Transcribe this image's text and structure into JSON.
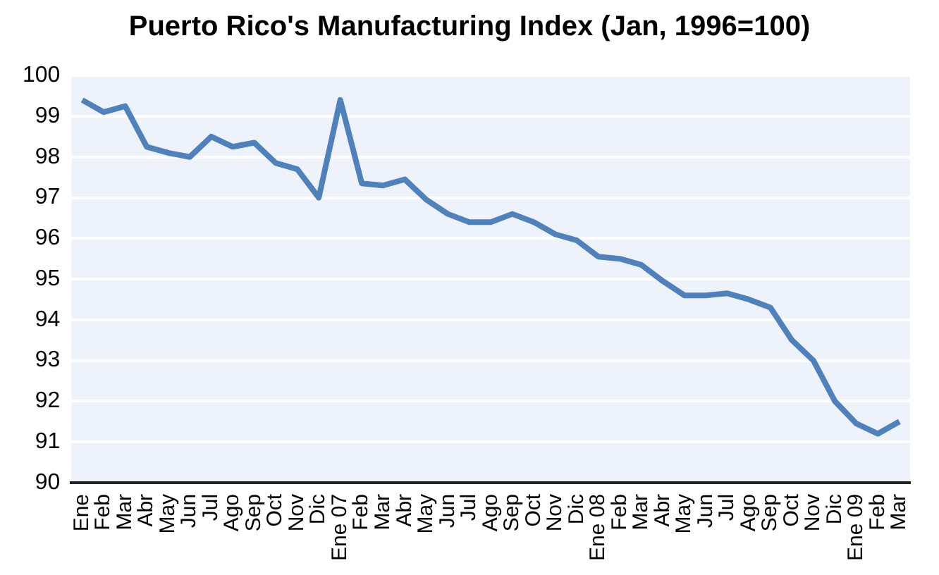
{
  "chart_data": {
    "type": "line",
    "title": "Puerto Rico's Manufacturing Index (Jan, 1996=100)",
    "categories": [
      "Ene",
      "Feb",
      "Mar",
      "Abr",
      "May",
      "Jun",
      "Jul",
      "Ago",
      "Sep",
      "Oct",
      "Nov",
      "Dic",
      "Ene 07",
      "Feb",
      "Mar",
      "Abr",
      "May",
      "Jun",
      "Jul",
      "Ago",
      "Sep",
      "Oct",
      "Nov",
      "Dic",
      "Ene 08",
      "Feb",
      "Mar",
      "Abr",
      "May",
      "Jun",
      "Jul",
      "Ago",
      "Sep",
      "Oct",
      "Nov",
      "Dic",
      "Ene 09",
      "Feb",
      "Mar"
    ],
    "series": [
      {
        "color": "#4f81bd",
        "values": [
          99.4,
          99.1,
          99.25,
          98.25,
          98.1,
          98.0,
          98.5,
          98.25,
          98.35,
          97.85,
          97.7,
          97.0,
          99.4,
          97.35,
          97.3,
          97.45,
          96.95,
          96.6,
          96.4,
          96.4,
          96.6,
          96.4,
          96.1,
          95.95,
          95.55,
          95.5,
          95.35,
          94.95,
          94.6,
          94.6,
          94.65,
          94.5,
          94.3,
          93.5,
          93.0,
          92.0,
          91.45,
          91.2,
          91.5
        ]
      }
    ],
    "ylim": [
      90,
      100
    ],
    "yticks": [
      90,
      91,
      92,
      93,
      94,
      95,
      96,
      97,
      98,
      99,
      100
    ],
    "grid": "y",
    "legend": false,
    "marker": "none",
    "line_style": "solid"
  }
}
